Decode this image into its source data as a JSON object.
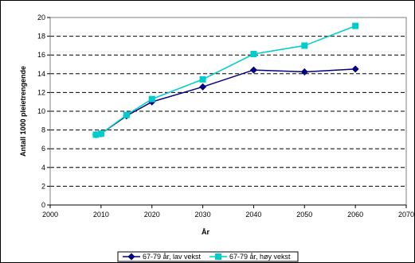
{
  "chart_data": {
    "type": "line",
    "title": "",
    "xlabel": "År",
    "ylabel": "Antall 1000 pleietrengende",
    "xlim": [
      2000,
      2070
    ],
    "ylim": [
      0,
      20
    ],
    "x_ticks": [
      2000,
      2010,
      2020,
      2030,
      2040,
      2050,
      2060,
      2070
    ],
    "y_ticks": [
      0,
      2,
      4,
      6,
      8,
      10,
      12,
      14,
      16,
      18,
      20
    ],
    "grid": "horizontal dashed",
    "legend_position": "bottom",
    "series": [
      {
        "name": "67-79 år, lav vekst",
        "color": "#000080",
        "marker": "diamond",
        "x": [
          2009,
          2010,
          2015,
          2020,
          2030,
          2040,
          2050,
          2060
        ],
        "y": [
          7.5,
          7.6,
          9.5,
          11.0,
          12.6,
          14.4,
          14.2,
          14.5
        ]
      },
      {
        "name": "67-79 år, høy vekst",
        "color": "#00CCCC",
        "marker": "square",
        "x": [
          2009,
          2010,
          2015,
          2020,
          2030,
          2040,
          2050,
          2060
        ],
        "y": [
          7.5,
          7.6,
          9.6,
          11.3,
          13.4,
          16.1,
          17.0,
          19.1
        ]
      }
    ]
  }
}
